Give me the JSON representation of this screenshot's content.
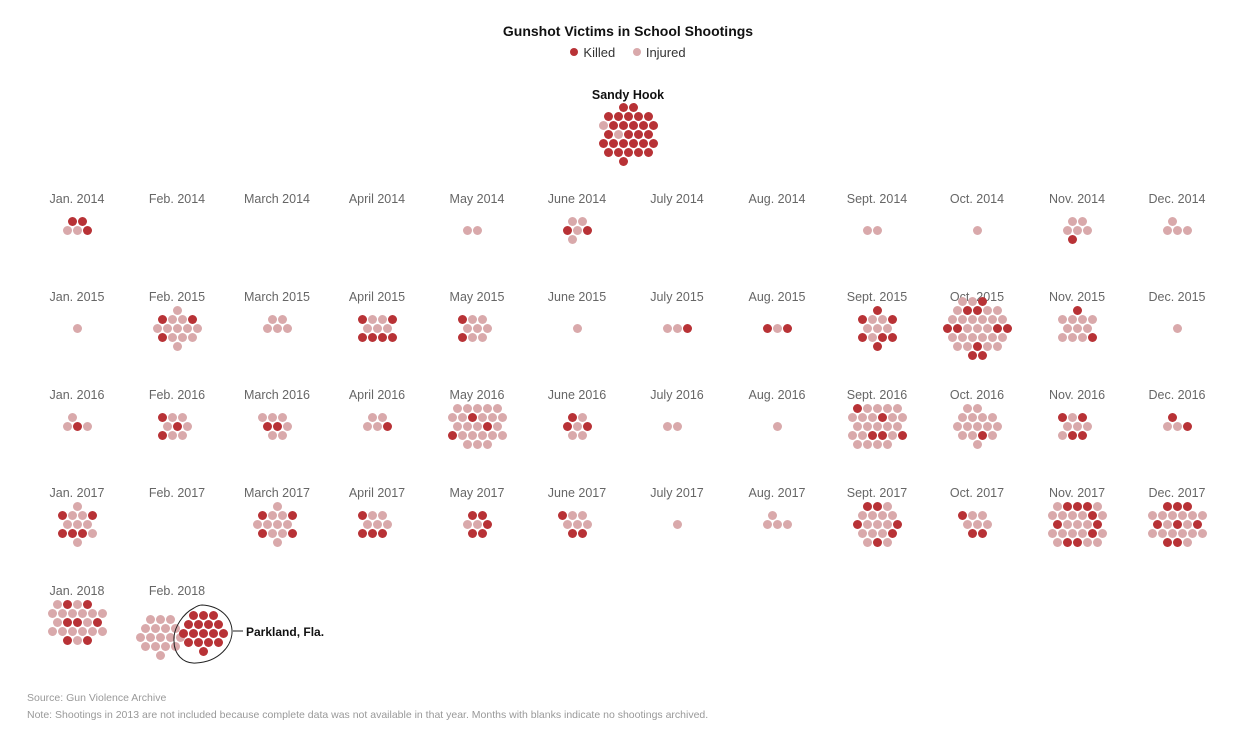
{
  "title": "Gunshot Victims in School Shootings",
  "legend": {
    "killed_label": "Killed",
    "injured_label": "Injured"
  },
  "colors": {
    "killed": "#b83236",
    "injured": "#d9a9ab"
  },
  "annotations": {
    "sandy_hook": "Sandy Hook",
    "parkland": "Parkland, Fla."
  },
  "footer": {
    "source": "Source: Gun Violence Archive",
    "note": "Note: Shootings in 2013 are not included because complete data was not available in that year. Months with blanks indicate no shootings archived."
  },
  "chart_data": {
    "type": "dot-grid",
    "unit": "one dot per gunshot victim",
    "sandy_hook": {
      "killed": 28,
      "injured": 2
    },
    "months": [
      {
        "label": "Jan. 2014",
        "killed": 3,
        "injured": 2
      },
      {
        "label": "Feb. 2014",
        "killed": 0,
        "injured": 0
      },
      {
        "label": "March 2014",
        "killed": 0,
        "injured": 0
      },
      {
        "label": "April 2014",
        "killed": 0,
        "injured": 0
      },
      {
        "label": "May 2014",
        "killed": 0,
        "injured": 2
      },
      {
        "label": "June 2014",
        "killed": 2,
        "injured": 4
      },
      {
        "label": "July 2014",
        "killed": 0,
        "injured": 0
      },
      {
        "label": "Aug. 2014",
        "killed": 0,
        "injured": 0
      },
      {
        "label": "Sept. 2014",
        "killed": 0,
        "injured": 2
      },
      {
        "label": "Oct. 2014",
        "killed": 0,
        "injured": 1
      },
      {
        "label": "Nov. 2014",
        "killed": 1,
        "injured": 5
      },
      {
        "label": "Dec. 2014",
        "killed": 0,
        "injured": 4
      },
      {
        "label": "Jan. 2015",
        "killed": 0,
        "injured": 1
      },
      {
        "label": "Feb. 2015",
        "killed": 3,
        "injured": 12
      },
      {
        "label": "March 2015",
        "killed": 0,
        "injured": 5
      },
      {
        "label": "April 2015",
        "killed": 6,
        "injured": 5
      },
      {
        "label": "May 2015",
        "killed": 2,
        "injured": 7
      },
      {
        "label": "June 2015",
        "killed": 0,
        "injured": 1
      },
      {
        "label": "July 2015",
        "killed": 1,
        "injured": 2
      },
      {
        "label": "Aug. 2015",
        "killed": 2,
        "injured": 1
      },
      {
        "label": "Sept. 2015",
        "killed": 7,
        "injured": 6
      },
      {
        "label": "Oct. 2015",
        "killed": 10,
        "injured": 24
      },
      {
        "label": "Nov. 2015",
        "killed": 2,
        "injured": 10
      },
      {
        "label": "Dec. 2015",
        "killed": 0,
        "injured": 1
      },
      {
        "label": "Jan. 2016",
        "killed": 1,
        "injured": 3
      },
      {
        "label": "Feb. 2016",
        "killed": 3,
        "injured": 6
      },
      {
        "label": "March 2016",
        "killed": 2,
        "injured": 6
      },
      {
        "label": "April 2016",
        "killed": 1,
        "injured": 4
      },
      {
        "label": "May 2016",
        "killed": 3,
        "injured": 22
      },
      {
        "label": "June 2016",
        "killed": 3,
        "injured": 4
      },
      {
        "label": "July 2016",
        "killed": 0,
        "injured": 2
      },
      {
        "label": "Aug. 2016",
        "killed": 0,
        "injured": 1
      },
      {
        "label": "Sept. 2016",
        "killed": 5,
        "injured": 21
      },
      {
        "label": "Oct. 2016",
        "killed": 1,
        "injured": 15
      },
      {
        "label": "Nov. 2016",
        "killed": 4,
        "injured": 5
      },
      {
        "label": "Dec. 2016",
        "killed": 2,
        "injured": 2
      },
      {
        "label": "Jan. 2017",
        "killed": 5,
        "injured": 8
      },
      {
        "label": "Feb. 2017",
        "killed": 0,
        "injured": 0
      },
      {
        "label": "March 2017",
        "killed": 4,
        "injured": 10
      },
      {
        "label": "April 2017",
        "killed": 4,
        "injured": 5
      },
      {
        "label": "May 2017",
        "killed": 5,
        "injured": 2
      },
      {
        "label": "June 2017",
        "killed": 3,
        "injured": 5
      },
      {
        "label": "July 2017",
        "killed": 0,
        "injured": 1
      },
      {
        "label": "Aug. 2017",
        "killed": 0,
        "injured": 4
      },
      {
        "label": "Sept. 2017",
        "killed": 6,
        "injured": 13
      },
      {
        "label": "Oct. 2017",
        "killed": 3,
        "injured": 5
      },
      {
        "label": "Nov. 2017",
        "killed": 9,
        "injured": 18
      },
      {
        "label": "Dec. 2017",
        "killed": 8,
        "injured": 15
      },
      {
        "label": "Jan. 2018",
        "killed": 7,
        "injured": 17
      },
      {
        "label": "Feb. 2018",
        "killed": 17,
        "injured": 17
      }
    ]
  }
}
